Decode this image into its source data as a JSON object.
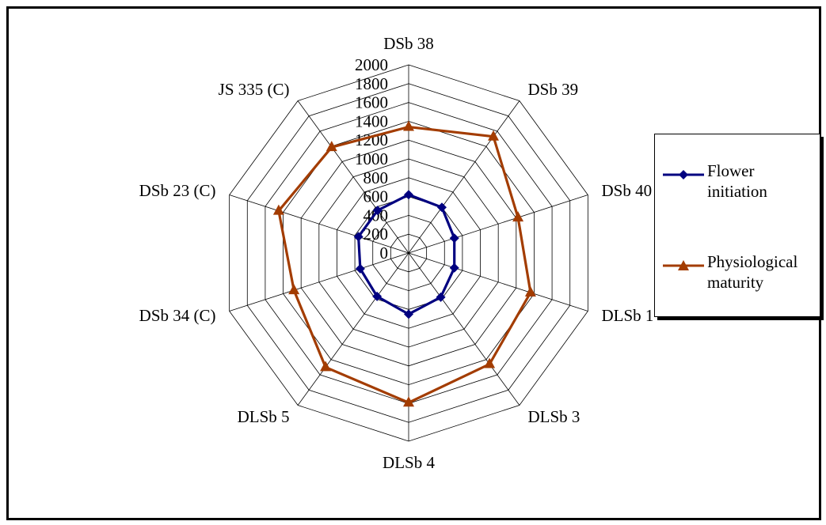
{
  "chart_data": {
    "type": "radar",
    "title": "",
    "categories": [
      "DSb 38",
      "DSb 39",
      "DSb 40",
      "DLSb 1",
      "DLSb 3",
      "DLSb 4",
      "DLSb 5",
      "DSb 34 (C)",
      "DSb 23 (C)",
      "JS 335 (C)"
    ],
    "rlim": [
      0,
      2000
    ],
    "ticks": [
      "2000",
      "1800",
      "1600",
      "1400",
      "1200",
      "1000",
      "800",
      "600",
      "400",
      "200",
      "0"
    ],
    "grid": true,
    "legend_position": "right",
    "series": [
      {
        "name": "Flower initiation",
        "color": "#000080",
        "marker": "diamond",
        "values": [
          620,
          600,
          510,
          510,
          580,
          650,
          570,
          540,
          560,
          560
        ]
      },
      {
        "name": "Physiological maturity",
        "color": "#A33C00",
        "marker": "triangle",
        "values": [
          1340,
          1530,
          1220,
          1360,
          1460,
          1590,
          1500,
          1280,
          1450,
          1390
        ]
      }
    ]
  },
  "legend": {
    "items": [
      {
        "line1": "Flower",
        "line2": "initiation",
        "color": "#000080",
        "marker": "diamond"
      },
      {
        "line1": "Physiological",
        "line2": "maturity",
        "color": "#A33C00",
        "marker": "triangle"
      }
    ]
  }
}
